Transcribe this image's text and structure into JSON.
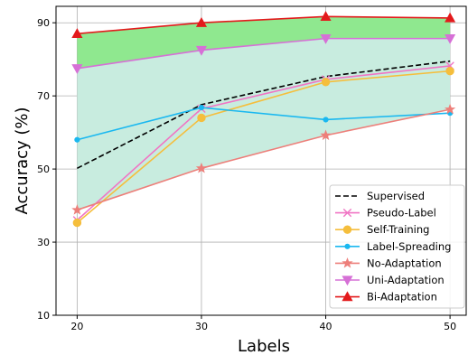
{
  "chart_data": {
    "type": "line",
    "xlabel": "Labels",
    "ylabel": "Accuracy (%)",
    "x": [
      20,
      30,
      40,
      50
    ],
    "xticks": [
      20,
      30,
      40,
      50
    ],
    "yticks": [
      10,
      30,
      50,
      70,
      90
    ],
    "xlim": [
      18.3,
      51.3
    ],
    "ylim": [
      10,
      94.5
    ],
    "grid": true,
    "legend_position": "lower-right",
    "series": [
      {
        "name": "Supervised",
        "values": [
          50.2,
          67.6,
          75.3,
          79.5
        ],
        "color": "#000000",
        "style": "dashed",
        "marker": "none"
      },
      {
        "name": "Pseudo-Label",
        "values": [
          36.0,
          66.5,
          74.5,
          78.2
        ],
        "color": "#f075c4",
        "style": "solid",
        "marker": "x"
      },
      {
        "name": "Self-Training",
        "values": [
          35.3,
          64.0,
          73.8,
          76.8
        ],
        "color": "#f5be3c",
        "style": "solid",
        "marker": "circle"
      },
      {
        "name": "Label-Spreading",
        "values": [
          58.0,
          66.8,
          63.5,
          65.3
        ],
        "color": "#1ab8f0",
        "style": "solid",
        "marker": "point"
      },
      {
        "name": "No-Adaptation",
        "values": [
          38.8,
          50.2,
          59.2,
          66.3
        ],
        "color": "#ed7f7a",
        "style": "solid",
        "marker": "star"
      },
      {
        "name": "Uni-Adaptation",
        "values": [
          77.5,
          82.5,
          85.7,
          85.7
        ],
        "color": "#d670d6",
        "style": "solid",
        "marker": "triangle-down"
      },
      {
        "name": "Bi-Adaptation",
        "values": [
          87.0,
          90.0,
          91.7,
          91.3
        ],
        "color": "#e31a1c",
        "style": "solid",
        "marker": "triangle-up"
      }
    ],
    "fills": [
      {
        "between": [
          "No-Adaptation",
          "Uni-Adaptation"
        ],
        "color": "#c8ecdf"
      },
      {
        "between": [
          "Uni-Adaptation",
          "Bi-Adaptation"
        ],
        "color": "#8fe88f"
      }
    ]
  }
}
